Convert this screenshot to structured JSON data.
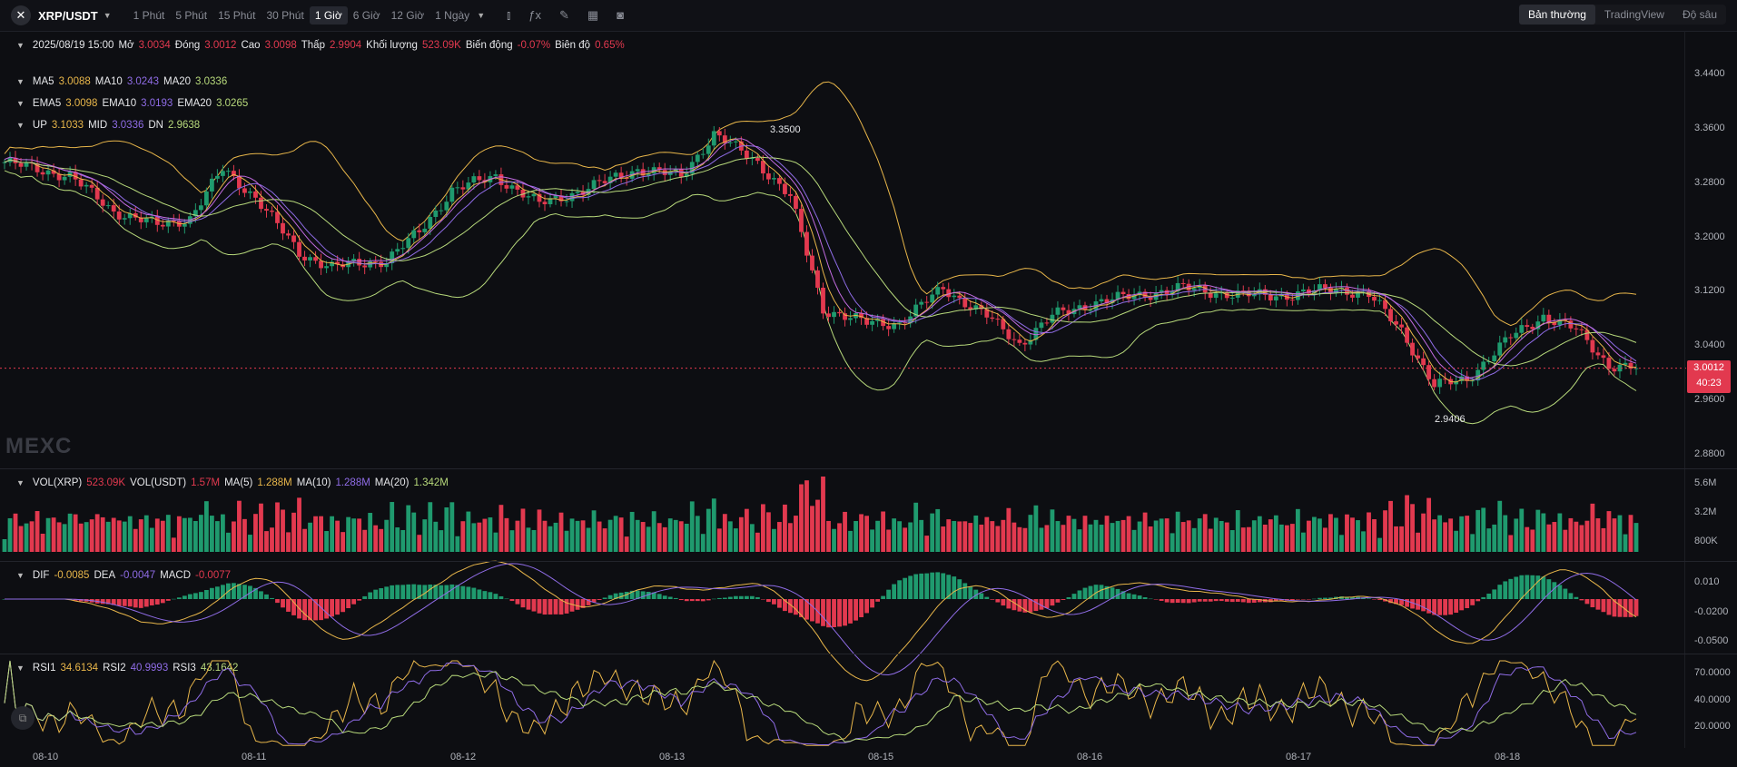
{
  "header": {
    "symbol": "XRP/USDT",
    "intervals": [
      "1 Phút",
      "5 Phút",
      "15 Phút",
      "30 Phút",
      "1 Giờ",
      "6 Giờ",
      "12 Giờ",
      "1 Ngày"
    ],
    "active_interval": "1 Giờ",
    "view_tabs": [
      "Bản thường",
      "TradingView",
      "Độ sâu"
    ],
    "active_view": "Bản thường"
  },
  "ohlc": {
    "time": "2025/08/19 15:00",
    "open_label": "Mở",
    "open": "3.0034",
    "close_label": "Đóng",
    "close": "3.0012",
    "high_label": "Cao",
    "high": "3.0098",
    "low_label": "Thấp",
    "low": "2.9904",
    "volume_label": "Khối lượng",
    "volume": "523.09K",
    "change_label": "Biến động",
    "change": "-0.07%",
    "amplitude_label": "Biên độ",
    "amplitude": "0.65%"
  },
  "ma": {
    "ma5_label": "MA5",
    "ma5": "3.0088",
    "ma10_label": "MA10",
    "ma10": "3.0243",
    "ma20_label": "MA20",
    "ma20": "3.0336"
  },
  "ema": {
    "ema5_label": "EMA5",
    "ema5": "3.0098",
    "ema10_label": "EMA10",
    "ema10": "3.0193",
    "ema20_label": "EMA20",
    "ema20": "3.0265"
  },
  "boll": {
    "up_label": "UP",
    "up": "3.1033",
    "mid_label": "MID",
    "mid": "3.0336",
    "dn_label": "DN",
    "dn": "2.9638"
  },
  "vol": {
    "vol_xrp_label": "VOL(XRP)",
    "vol_xrp": "523.09K",
    "vol_usdt_label": "VOL(USDT)",
    "vol_usdt": "1.57M",
    "ma5_label": "MA(5)",
    "ma5": "1.288M",
    "ma10_label": "MA(10)",
    "ma10": "1.288M",
    "ma20_label": "MA(20)",
    "ma20": "1.342M"
  },
  "macd": {
    "dif_label": "DIF",
    "dif": "-0.0085",
    "dea_label": "DEA",
    "dea": "-0.0047",
    "macd_label": "MACD",
    "macd": "-0.0077"
  },
  "rsi": {
    "rsi1_label": "RSI1",
    "rsi1": "34.6134",
    "rsi2_label": "RSI2",
    "rsi2": "40.9993",
    "rsi3_label": "RSI3",
    "rsi3": "43.1642"
  },
  "annotations": {
    "high_mark": "3.3500",
    "low_mark": "2.9406"
  },
  "price_tag": {
    "price": "3.0012",
    "countdown": "40:23"
  },
  "watermark": "MEXC",
  "axes": {
    "price_ticks": [
      "3.4400",
      "3.3600",
      "3.2800",
      "3.2000",
      "3.1200",
      "3.0400",
      "2.9600",
      "2.8800"
    ],
    "volume_ticks": [
      "5.6M",
      "3.2M",
      "800K"
    ],
    "macd_ticks": [
      "0.010",
      "-0.0200",
      "-0.0500"
    ],
    "rsi_ticks": [
      "70.0000",
      "40.0000",
      "20.0000"
    ],
    "x_ticks": [
      "08-10",
      "08-11",
      "08-12",
      "08-13",
      "08-15",
      "08-16",
      "08-17",
      "08-18"
    ]
  },
  "colors": {
    "up": "#1f9a6e",
    "down": "#e2394f",
    "ma5": "#e8b64a",
    "ma10": "#8f6ce6",
    "ma20": "#b7d97b"
  },
  "chart_data": {
    "type": "candlestick",
    "title": "XRP/USDT 1 Giờ",
    "ylim": [
      2.86,
      3.47
    ],
    "anchors": [
      [
        0,
        3.29
      ],
      [
        12,
        3.27
      ],
      [
        20,
        3.22
      ],
      [
        28,
        3.2
      ],
      [
        34,
        3.21
      ],
      [
        40,
        3.28
      ],
      [
        46,
        3.24
      ],
      [
        54,
        3.16
      ],
      [
        60,
        3.14
      ],
      [
        70,
        3.15
      ],
      [
        76,
        3.19
      ],
      [
        82,
        3.25
      ],
      [
        90,
        3.27
      ],
      [
        98,
        3.23
      ],
      [
        106,
        3.25
      ],
      [
        116,
        3.28
      ],
      [
        124,
        3.27
      ],
      [
        130,
        3.33
      ],
      [
        138,
        3.29
      ],
      [
        144,
        3.24
      ],
      [
        150,
        3.08
      ],
      [
        158,
        3.06
      ],
      [
        164,
        3.06
      ],
      [
        172,
        3.11
      ],
      [
        180,
        3.07
      ],
      [
        186,
        3.03
      ],
      [
        192,
        3.07
      ],
      [
        200,
        3.09
      ],
      [
        208,
        3.1
      ],
      [
        216,
        3.11
      ],
      [
        226,
        3.1
      ],
      [
        236,
        3.1
      ],
      [
        244,
        3.11
      ],
      [
        250,
        3.1
      ],
      [
        256,
        3.05
      ],
      [
        262,
        2.97
      ],
      [
        268,
        2.98
      ],
      [
        276,
        3.04
      ],
      [
        282,
        3.07
      ],
      [
        288,
        3.05
      ],
      [
        294,
        3.0
      ]
    ]
  }
}
